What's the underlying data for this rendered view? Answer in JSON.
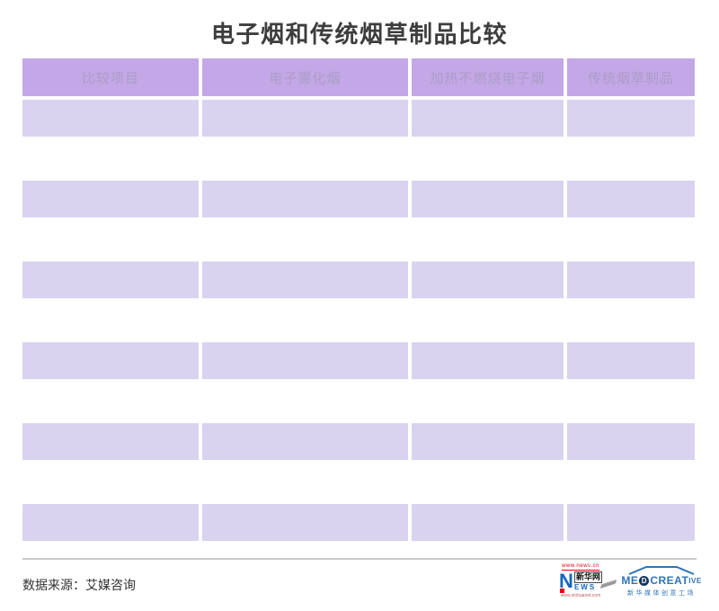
{
  "page": {
    "title": "电子烟和传统烟草制品比较"
  },
  "table": {
    "columns": [
      "比较项目",
      "电子雾化烟",
      "加热不燃烧电子烟",
      "传统烟草制品"
    ],
    "rows": [
      [
        "",
        "",
        "",
        ""
      ],
      [
        "",
        "",
        "",
        ""
      ],
      [
        "",
        "",
        "",
        ""
      ],
      [
        "",
        "",
        "",
        ""
      ],
      [
        "",
        "",
        "",
        ""
      ],
      [
        "",
        "",
        "",
        ""
      ],
      [
        "",
        "",
        "",
        ""
      ],
      [
        "",
        "",
        "",
        ""
      ],
      [
        "",
        "",
        "",
        ""
      ],
      [
        "",
        "",
        "",
        ""
      ],
      [
        "",
        "",
        "",
        ""
      ]
    ]
  },
  "footer": {
    "source": "数据来源：艾媒咨询",
    "logos": {
      "xinhua": {
        "top_url": "www.news.cn",
        "n_letter": "N",
        "cn_name": "新华网",
        "ews": "EWS",
        "bottom_url": "www.xinhuanet.com"
      },
      "medcreative": {
        "me": "ME",
        "d": "D",
        "create": "CREAT",
        "tail": "IVE",
        "cn_name": "新华媒体创意工场"
      }
    }
  },
  "colors": {
    "header_bg": "#c3a7e6",
    "header_text": "#ab9dc7",
    "row_stripe": "#d9d3ef",
    "title_text": "#3d3d3d",
    "divider": "#c9c9c9",
    "xinhua_red": "#e60012",
    "xinhua_blue": "#1565c0",
    "medcreative_blue": "#2f74b5",
    "medcreative_navy": "#16355c"
  }
}
